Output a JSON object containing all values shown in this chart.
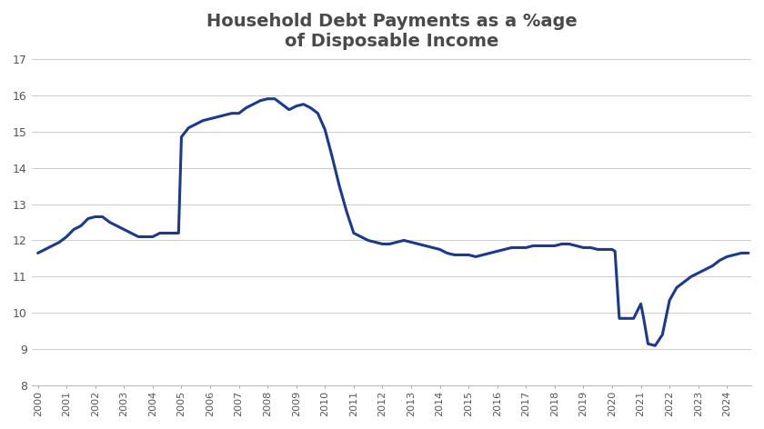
{
  "title": "Household Debt Payments as a %age\nof Disposable Income",
  "title_fontsize": 14,
  "title_fontweight": "bold",
  "title_color": "#4a4a4a",
  "line_color": "#1a3a8f",
  "line_width": 2.2,
  "background_color": "#ffffff",
  "xlim": [
    1999.8,
    2024.85
  ],
  "ylim": [
    8,
    17
  ],
  "yticks": [
    8,
    9,
    10,
    11,
    12,
    13,
    14,
    15,
    16,
    17
  ],
  "xticks": [
    2000,
    2001,
    2002,
    2003,
    2004,
    2005,
    2006,
    2007,
    2008,
    2009,
    2010,
    2011,
    2012,
    2013,
    2014,
    2015,
    2016,
    2017,
    2018,
    2019,
    2020,
    2021,
    2022,
    2023,
    2024
  ],
  "data": {
    "x": [
      2000.0,
      2000.25,
      2000.5,
      2000.75,
      2001.0,
      2001.25,
      2001.5,
      2001.75,
      2002.0,
      2002.25,
      2002.5,
      2002.75,
      2003.0,
      2003.25,
      2003.5,
      2003.75,
      2004.0,
      2004.25,
      2004.5,
      2004.75,
      2004.9,
      2005.0,
      2005.25,
      2005.5,
      2005.75,
      2006.0,
      2006.25,
      2006.5,
      2006.75,
      2007.0,
      2007.25,
      2007.5,
      2007.75,
      2008.0,
      2008.25,
      2008.5,
      2008.75,
      2009.0,
      2009.25,
      2009.5,
      2009.75,
      2010.0,
      2010.25,
      2010.5,
      2010.75,
      2011.0,
      2011.25,
      2011.5,
      2011.75,
      2012.0,
      2012.25,
      2012.5,
      2012.75,
      2013.0,
      2013.25,
      2013.5,
      2013.75,
      2014.0,
      2014.25,
      2014.5,
      2014.75,
      2015.0,
      2015.25,
      2015.5,
      2015.75,
      2016.0,
      2016.25,
      2016.5,
      2016.75,
      2017.0,
      2017.25,
      2017.5,
      2017.75,
      2018.0,
      2018.25,
      2018.5,
      2018.75,
      2019.0,
      2019.25,
      2019.5,
      2019.75,
      2020.0,
      2020.1,
      2020.25,
      2020.5,
      2020.75,
      2021.0,
      2021.1,
      2021.25,
      2021.5,
      2021.75,
      2022.0,
      2022.25,
      2022.5,
      2022.75,
      2023.0,
      2023.25,
      2023.5,
      2023.75,
      2024.0,
      2024.25,
      2024.5,
      2024.75
    ],
    "y": [
      11.65,
      11.75,
      11.85,
      11.95,
      12.1,
      12.3,
      12.4,
      12.6,
      12.65,
      12.65,
      12.5,
      12.4,
      12.3,
      12.2,
      12.1,
      12.1,
      12.1,
      12.2,
      12.2,
      12.2,
      12.2,
      14.85,
      15.1,
      15.2,
      15.3,
      15.35,
      15.4,
      15.45,
      15.5,
      15.5,
      15.65,
      15.75,
      15.85,
      15.9,
      15.9,
      15.75,
      15.6,
      15.7,
      15.75,
      15.65,
      15.5,
      15.05,
      14.3,
      13.5,
      12.8,
      12.2,
      12.1,
      12.0,
      11.95,
      11.9,
      11.9,
      11.95,
      12.0,
      11.95,
      11.9,
      11.85,
      11.8,
      11.75,
      11.65,
      11.6,
      11.6,
      11.6,
      11.55,
      11.6,
      11.65,
      11.7,
      11.75,
      11.8,
      11.8,
      11.8,
      11.85,
      11.85,
      11.85,
      11.85,
      11.9,
      11.9,
      11.85,
      11.8,
      11.8,
      11.75,
      11.75,
      11.75,
      11.7,
      9.85,
      9.85,
      9.85,
      10.25,
      9.85,
      9.15,
      9.1,
      9.4,
      10.35,
      10.7,
      10.85,
      11.0,
      11.1,
      11.2,
      11.3,
      11.45,
      11.55,
      11.6,
      11.65,
      11.65
    ]
  }
}
